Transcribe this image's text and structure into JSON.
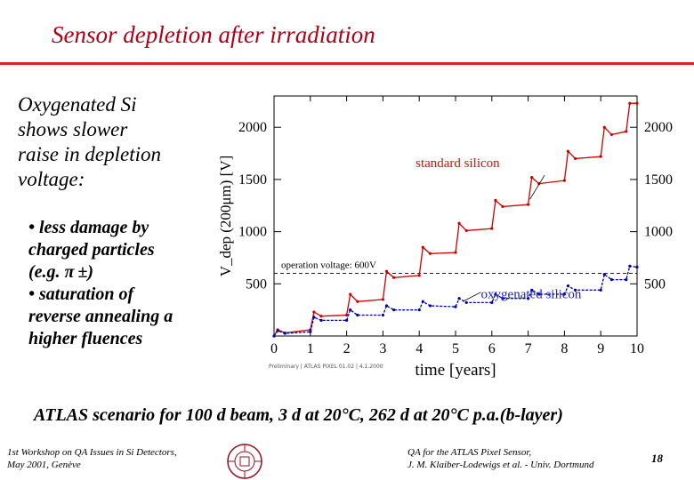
{
  "slide": {
    "title": "Sensor depletion after irradiation",
    "main_point_lines": [
      "Oxygenated Si",
      "shows slower",
      "raise in depletion",
      "voltage:"
    ],
    "sub_points": [
      "• less damage by",
      "charged particles",
      "(e.g. π ±)",
      "• saturation of",
      "reverse annealing a",
      "higher fluences"
    ],
    "scenario": "ATLAS scenario for 100 d beam, 3 d at 20°C, 262 d at 20°C p.a.(b-layer)",
    "footer_left_lines": [
      "1st Workshop on QA Issues in Si Detectors,",
      "May 2001, Genève"
    ],
    "footer_right_lines": [
      "QA for the ATLAS Pixel Sensor,",
      "J. M. Klaiber-Lodewigs et al. - Univ. Dortmund"
    ],
    "page_number": "18"
  },
  "colors": {
    "title": "#b00018",
    "rule": "#e0202a",
    "standard": "#cc0000",
    "oxygenated": "#0000aa",
    "label_std": "#cc1111",
    "label_oxy": "#2222bb"
  },
  "chart_data": {
    "type": "line",
    "title": "",
    "xlabel": "time [years]",
    "ylabel": "V_dep (200μm) [V]",
    "xlim": [
      0,
      10
    ],
    "ylim": [
      0,
      2300
    ],
    "x_ticks": [
      "0",
      "1",
      "2",
      "3",
      "4",
      "5",
      "6",
      "7",
      "8",
      "9",
      "10"
    ],
    "y_ticks": [
      "500",
      "1000",
      "1500",
      "2000"
    ],
    "reference_line": {
      "y": 600,
      "label": "operation voltage: 600V"
    },
    "footnote": "Preliminary | ATLAS PIXEL 01.02 | 4.1.2000",
    "annotations": [
      "standard silicon",
      "oxygenated silicon"
    ],
    "series": [
      {
        "name": "standard silicon",
        "points": [
          [
            0,
            0
          ],
          [
            0.1,
            60
          ],
          [
            0.3,
            30
          ],
          [
            1.0,
            60
          ],
          [
            1.1,
            230
          ],
          [
            1.3,
            190
          ],
          [
            2.0,
            200
          ],
          [
            2.1,
            400
          ],
          [
            2.3,
            330
          ],
          [
            3.0,
            350
          ],
          [
            3.1,
            620
          ],
          [
            3.3,
            560
          ],
          [
            4.0,
            580
          ],
          [
            4.1,
            850
          ],
          [
            4.3,
            790
          ],
          [
            5.0,
            800
          ],
          [
            5.1,
            1080
          ],
          [
            5.3,
            1010
          ],
          [
            6.0,
            1030
          ],
          [
            6.1,
            1300
          ],
          [
            6.3,
            1240
          ],
          [
            7.0,
            1260
          ],
          [
            7.1,
            1520
          ],
          [
            7.3,
            1460
          ],
          [
            8.0,
            1490
          ],
          [
            8.1,
            1770
          ],
          [
            8.3,
            1700
          ],
          [
            9.0,
            1720
          ],
          [
            9.1,
            2000
          ],
          [
            9.3,
            1930
          ],
          [
            9.7,
            1960
          ],
          [
            9.8,
            2230
          ],
          [
            10.0,
            2230
          ]
        ]
      },
      {
        "name": "oxygenated silicon",
        "points": [
          [
            0,
            0
          ],
          [
            0.1,
            50
          ],
          [
            0.3,
            25
          ],
          [
            1.0,
            40
          ],
          [
            1.1,
            180
          ],
          [
            1.3,
            150
          ],
          [
            2.0,
            150
          ],
          [
            2.1,
            250
          ],
          [
            2.3,
            200
          ],
          [
            3.0,
            200
          ],
          [
            3.1,
            290
          ],
          [
            3.3,
            250
          ],
          [
            4.0,
            250
          ],
          [
            4.1,
            330
          ],
          [
            4.3,
            290
          ],
          [
            5.0,
            280
          ],
          [
            5.1,
            360
          ],
          [
            5.3,
            320
          ],
          [
            6.0,
            320
          ],
          [
            6.1,
            400
          ],
          [
            6.3,
            360
          ],
          [
            7.0,
            360
          ],
          [
            7.1,
            440
          ],
          [
            7.3,
            400
          ],
          [
            8.0,
            400
          ],
          [
            8.1,
            480
          ],
          [
            8.3,
            440
          ],
          [
            9.0,
            440
          ],
          [
            9.1,
            590
          ],
          [
            9.3,
            540
          ],
          [
            9.7,
            540
          ],
          [
            9.8,
            670
          ],
          [
            10.0,
            660
          ]
        ]
      }
    ]
  }
}
